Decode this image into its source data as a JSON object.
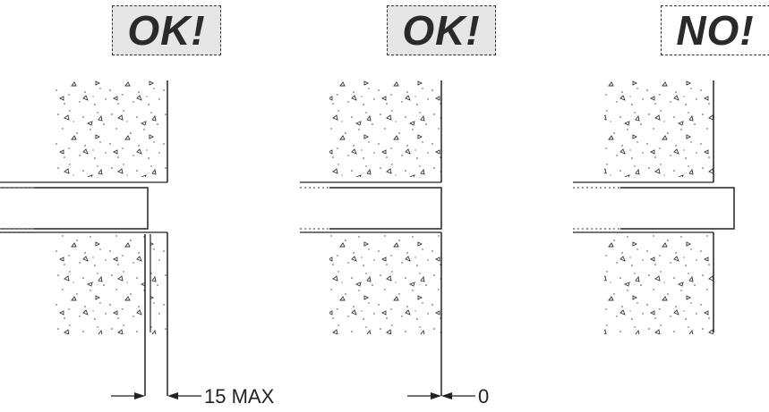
{
  "panels": [
    {
      "status": "ok",
      "label": "OK!",
      "dimension": "15 MAX"
    },
    {
      "status": "ok",
      "label": "OK!",
      "dimension": "0"
    },
    {
      "status": "no",
      "label": "NO!",
      "dimension": ""
    }
  ]
}
